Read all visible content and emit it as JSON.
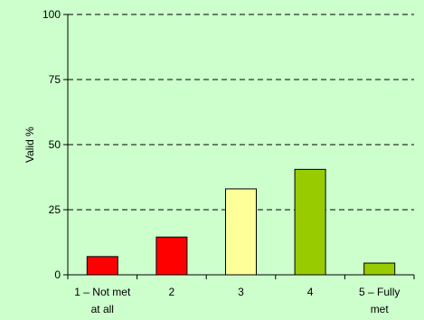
{
  "chart_data": {
    "type": "bar",
    "categories": [
      "1 – Not met at all",
      "2",
      "3",
      "4",
      "5 – Fully met"
    ],
    "category_lines": [
      [
        "1 – Not met",
        "at all"
      ],
      [
        "2"
      ],
      [
        "3"
      ],
      [
        "4"
      ],
      [
        "5 – Fully",
        "met"
      ]
    ],
    "values": [
      7,
      14.5,
      33,
      40.5,
      4.5
    ],
    "bar_colors": [
      "#ff0000",
      "#ff0000",
      "#ffff99",
      "#99cc00",
      "#99cc00"
    ],
    "title": "",
    "xlabel": "",
    "ylabel": "Valid %",
    "ylim": [
      0,
      100
    ],
    "yticks": [
      0,
      25,
      50,
      75,
      100
    ],
    "grid": "horizontal dashed",
    "legend": "none"
  },
  "colors": {
    "background": "#ccffcc",
    "bar_outline": "#000000",
    "gridline": "#000000"
  }
}
